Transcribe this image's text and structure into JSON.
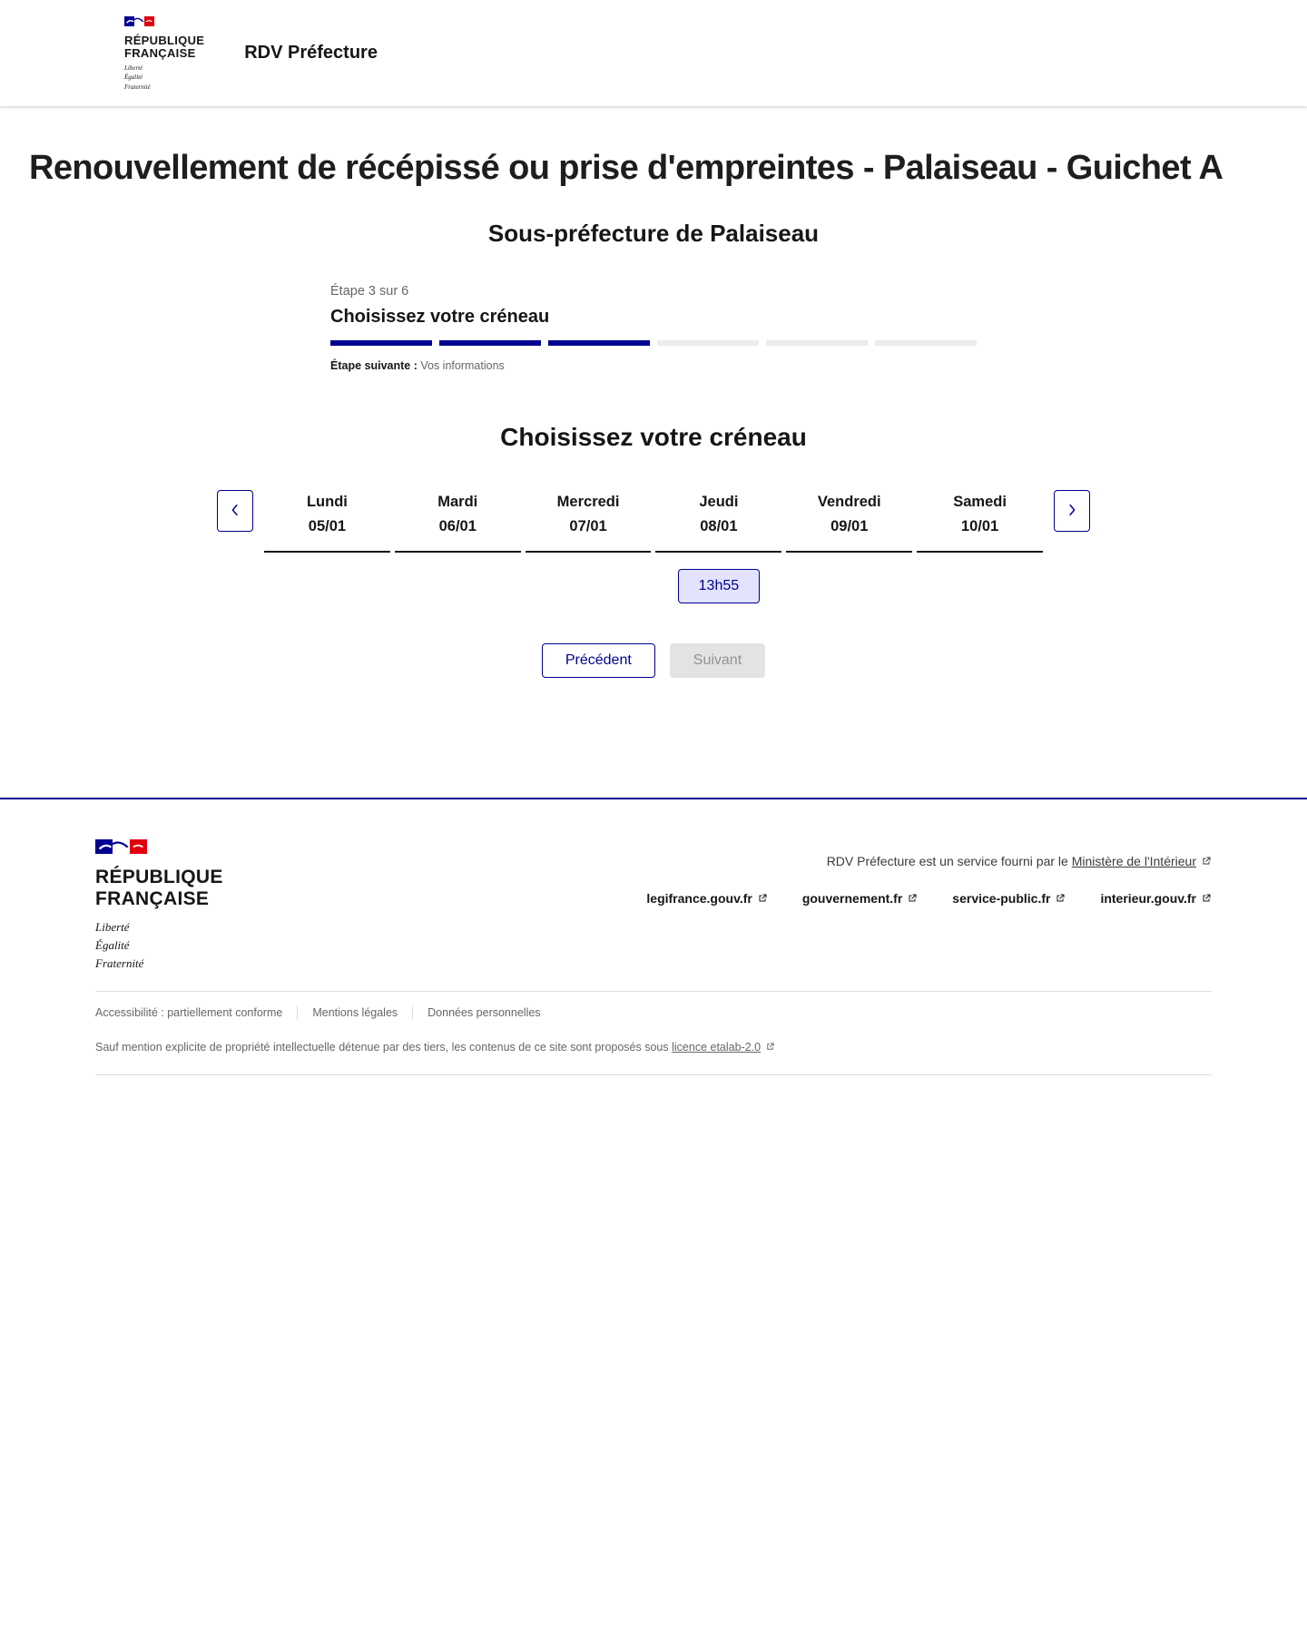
{
  "header": {
    "app_title": "RDV Préfecture"
  },
  "brand": {
    "name_line1": "RÉPUBLIQUE",
    "name_line2": "FRANÇAISE",
    "motto_line1": "Liberté",
    "motto_line2": "Égalité",
    "motto_line3": "Fraternité"
  },
  "page": {
    "title": "Renouvellement de récépissé ou prise d'empreintes - Palaiseau - Guichet A",
    "subtitle": "Sous-préfecture de Palaiseau"
  },
  "stepper": {
    "step_label": "Étape 3 sur 6",
    "current_step": 3,
    "total_steps": 6,
    "current_step_title": "Choisissez votre créneau",
    "next_step_label": "Étape suivante :",
    "next_step_value": "Vos informations"
  },
  "calendar": {
    "heading": "Choisissez votre créneau",
    "days": [
      {
        "name": "Lundi",
        "date": "05/01",
        "slots": []
      },
      {
        "name": "Mardi",
        "date": "06/01",
        "slots": []
      },
      {
        "name": "Mercredi",
        "date": "07/01",
        "slots": []
      },
      {
        "name": "Jeudi",
        "date": "08/01",
        "slots": [
          "13h55"
        ]
      },
      {
        "name": "Vendredi",
        "date": "09/01",
        "slots": []
      },
      {
        "name": "Samedi",
        "date": "10/01",
        "slots": []
      }
    ]
  },
  "actions": {
    "previous_label": "Précédent",
    "next_label": "Suivant"
  },
  "footer": {
    "service_text": "RDV Préfecture est un service fourni par le",
    "service_link": "Ministère de l'Intérieur",
    "links": [
      "legifrance.gouv.fr",
      "gouvernement.fr",
      "service-public.fr",
      "interieur.gouv.fr"
    ],
    "bottom_links": [
      "Accessibilité : partiellement conforme",
      "Mentions légales",
      "Données personnelles"
    ],
    "license_text": "Sauf mention explicite de propriété intellectuelle détenue par des tiers, les contenus de ce site sont proposés sous",
    "license_link": "licence etalab-2.0"
  },
  "icons": {
    "prev": "chevron-left",
    "next": "chevron-right",
    "external": "external-link",
    "flag": "french-flag-marianne"
  },
  "colors": {
    "primary_blue": "#000091",
    "flag_red": "#E1000F",
    "slot_background": "#E3E3FD",
    "disabled_background": "#E3E3E3",
    "disabled_text": "#929292",
    "text_dark": "#161616",
    "text_muted": "#666666"
  }
}
